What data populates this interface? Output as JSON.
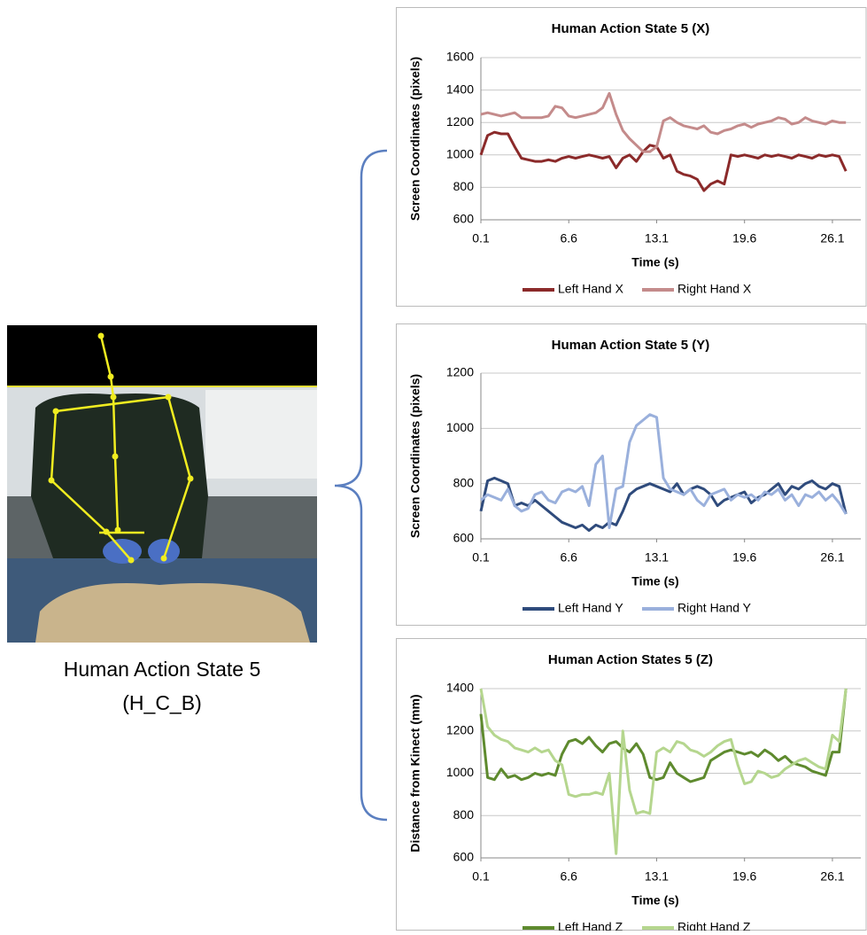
{
  "figure": {
    "caption_line1": "Human Action State 5",
    "caption_line2": "(H_C_B)"
  },
  "chart_data": [
    {
      "type": "line",
      "title": "Human Action State 5 (X)",
      "x_label": "Time (s)",
      "y_label": "Screen Coordinates (pixels)",
      "xlim": [
        0.1,
        28.2
      ],
      "xticks": [
        0.1,
        6.6,
        13.1,
        19.6,
        26.1
      ],
      "ylim": [
        600,
        1600
      ],
      "yticks": [
        600,
        800,
        1000,
        1200,
        1400,
        1600
      ],
      "grid": true,
      "x": [
        0.1,
        0.6,
        1.1,
        1.6,
        2.1,
        2.6,
        3.1,
        3.6,
        4.1,
        4.6,
        5.1,
        5.6,
        6.1,
        6.6,
        7.1,
        7.6,
        8.1,
        8.6,
        9.1,
        9.6,
        10.1,
        10.6,
        11.1,
        11.6,
        12.1,
        12.6,
        13.1,
        13.6,
        14.1,
        14.6,
        15.1,
        15.6,
        16.1,
        16.6,
        17.1,
        17.6,
        18.1,
        18.6,
        19.1,
        19.6,
        20.1,
        20.6,
        21.1,
        21.6,
        22.1,
        22.6,
        23.1,
        23.6,
        24.1,
        24.6,
        25.1,
        25.6,
        26.1,
        26.6,
        27.1
      ],
      "series": [
        {
          "name": "Left Hand X",
          "color": "#8b2a2a",
          "values": [
            1000,
            1120,
            1140,
            1130,
            1130,
            1050,
            980,
            970,
            960,
            960,
            970,
            960,
            980,
            990,
            980,
            990,
            1000,
            990,
            980,
            990,
            920,
            980,
            1000,
            960,
            1020,
            1060,
            1050,
            980,
            1000,
            900,
            880,
            870,
            850,
            780,
            820,
            840,
            820,
            1000,
            990,
            1000,
            990,
            980,
            1000,
            990,
            1000,
            990,
            980,
            1000,
            990,
            980,
            1000,
            990,
            1000,
            990,
            900
          ]
        },
        {
          "name": "Right Hand X",
          "color": "#c48b8b",
          "values": [
            1250,
            1260,
            1250,
            1240,
            1250,
            1260,
            1230,
            1230,
            1230,
            1230,
            1240,
            1300,
            1290,
            1240,
            1230,
            1240,
            1250,
            1260,
            1290,
            1380,
            1250,
            1150,
            1100,
            1060,
            1020,
            1020,
            1050,
            1210,
            1230,
            1200,
            1180,
            1170,
            1160,
            1180,
            1140,
            1130,
            1150,
            1160,
            1180,
            1190,
            1170,
            1190,
            1200,
            1210,
            1230,
            1220,
            1190,
            1200,
            1230,
            1210,
            1200,
            1190,
            1210,
            1200,
            1200
          ]
        }
      ]
    },
    {
      "type": "line",
      "title": "Human Action State 5 (Y)",
      "x_label": "Time (s)",
      "y_label": "Screen Coordinates (pixels)",
      "xlim": [
        0.1,
        28.2
      ],
      "xticks": [
        0.1,
        6.6,
        13.1,
        19.6,
        26.1
      ],
      "ylim": [
        600,
        1200
      ],
      "yticks": [
        600,
        800,
        1000,
        1200
      ],
      "grid": true,
      "x": [
        0.1,
        0.6,
        1.1,
        1.6,
        2.1,
        2.6,
        3.1,
        3.6,
        4.1,
        4.6,
        5.1,
        5.6,
        6.1,
        6.6,
        7.1,
        7.6,
        8.1,
        8.6,
        9.1,
        9.6,
        10.1,
        10.6,
        11.1,
        11.6,
        12.1,
        12.6,
        13.1,
        13.6,
        14.1,
        14.6,
        15.1,
        15.6,
        16.1,
        16.6,
        17.1,
        17.6,
        18.1,
        18.6,
        19.1,
        19.6,
        20.1,
        20.6,
        21.1,
        21.6,
        22.1,
        22.6,
        23.1,
        23.6,
        24.1,
        24.6,
        25.1,
        25.6,
        26.1,
        26.6,
        27.1
      ],
      "series": [
        {
          "name": "Left Hand Y",
          "color": "#2f4b7c",
          "values": [
            700,
            810,
            820,
            810,
            800,
            720,
            730,
            720,
            740,
            720,
            700,
            680,
            660,
            650,
            640,
            650,
            630,
            650,
            640,
            660,
            650,
            700,
            760,
            780,
            790,
            800,
            790,
            780,
            770,
            800,
            760,
            780,
            790,
            780,
            760,
            720,
            740,
            750,
            760,
            770,
            730,
            750,
            760,
            780,
            800,
            760,
            790,
            780,
            800,
            810,
            790,
            780,
            800,
            790,
            690
          ]
        },
        {
          "name": "Right Hand Y",
          "color": "#9ab0dc",
          "values": [
            740,
            760,
            750,
            740,
            780,
            720,
            700,
            710,
            760,
            770,
            740,
            730,
            770,
            780,
            770,
            790,
            720,
            870,
            900,
            640,
            780,
            790,
            950,
            1010,
            1030,
            1050,
            1040,
            820,
            780,
            770,
            760,
            780,
            740,
            720,
            760,
            770,
            780,
            740,
            760,
            750,
            760,
            740,
            770,
            760,
            780,
            740,
            760,
            720,
            760,
            750,
            770,
            740,
            760,
            730,
            690
          ]
        }
      ]
    },
    {
      "type": "line",
      "title": "Human Action States 5 (Z)",
      "x_label": "Time (s)",
      "y_label": "Distance from Kinect (mm)",
      "xlim": [
        0.1,
        28.2
      ],
      "xticks": [
        0.1,
        6.6,
        13.1,
        19.6,
        26.1
      ],
      "ylim": [
        600,
        1400
      ],
      "yticks": [
        600,
        800,
        1000,
        1200,
        1400
      ],
      "grid": true,
      "x": [
        0.1,
        0.6,
        1.1,
        1.6,
        2.1,
        2.6,
        3.1,
        3.6,
        4.1,
        4.6,
        5.1,
        5.6,
        6.1,
        6.6,
        7.1,
        7.6,
        8.1,
        8.6,
        9.1,
        9.6,
        10.1,
        10.6,
        11.1,
        11.6,
        12.1,
        12.6,
        13.1,
        13.6,
        14.1,
        14.6,
        15.1,
        15.6,
        16.1,
        16.6,
        17.1,
        17.6,
        18.1,
        18.6,
        19.1,
        19.6,
        20.1,
        20.6,
        21.1,
        21.6,
        22.1,
        22.6,
        23.1,
        23.6,
        24.1,
        24.6,
        25.1,
        25.6,
        26.1,
        26.6,
        27.1
      ],
      "series": [
        {
          "name": "Left Hand Z",
          "color": "#5e8a2e",
          "values": [
            1280,
            980,
            970,
            1020,
            980,
            990,
            970,
            980,
            1000,
            990,
            1000,
            990,
            1090,
            1150,
            1160,
            1140,
            1170,
            1130,
            1100,
            1140,
            1150,
            1120,
            1100,
            1140,
            1090,
            980,
            970,
            980,
            1050,
            1000,
            980,
            960,
            970,
            980,
            1060,
            1080,
            1100,
            1110,
            1100,
            1090,
            1100,
            1080,
            1110,
            1090,
            1060,
            1080,
            1050,
            1040,
            1030,
            1010,
            1000,
            990,
            1100,
            1100,
            1400
          ]
        },
        {
          "name": "Right Hand Z",
          "color": "#b5d68e",
          "values": [
            1400,
            1220,
            1180,
            1160,
            1150,
            1120,
            1110,
            1100,
            1120,
            1100,
            1110,
            1060,
            1040,
            900,
            890,
            900,
            900,
            910,
            900,
            1000,
            620,
            1200,
            920,
            810,
            820,
            810,
            1100,
            1120,
            1100,
            1150,
            1140,
            1110,
            1100,
            1080,
            1100,
            1130,
            1150,
            1160,
            1040,
            950,
            960,
            1010,
            1000,
            980,
            990,
            1020,
            1040,
            1060,
            1070,
            1050,
            1030,
            1020,
            1180,
            1150,
            1400
          ]
        }
      ]
    }
  ]
}
